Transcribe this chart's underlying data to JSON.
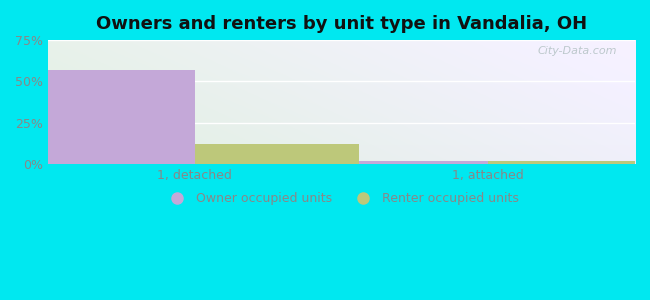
{
  "title": "Owners and renters by unit type in Vandalia, OH",
  "categories": [
    "1, detached",
    "1, attached"
  ],
  "owner_values": [
    57.0,
    2.0
  ],
  "renter_values": [
    12.0,
    2.0
  ],
  "owner_color": "#c4a8d8",
  "renter_color": "#bdc87a",
  "ylim": [
    0,
    75
  ],
  "yticks": [
    0,
    25,
    50,
    75
  ],
  "yticklabels": [
    "0%",
    "25%",
    "50%",
    "75%"
  ],
  "bar_width": 0.28,
  "outer_bg": "#00e8f0",
  "plot_bg_left": "#d8eeda",
  "plot_bg_right": "#e8f8f0",
  "watermark": "City-Data.com",
  "legend_labels": [
    "Owner occupied units",
    "Renter occupied units"
  ],
  "title_fontsize": 13,
  "tick_fontsize": 9,
  "legend_fontsize": 9,
  "grid_color": "#e0eee0",
  "tick_color": "#888888"
}
